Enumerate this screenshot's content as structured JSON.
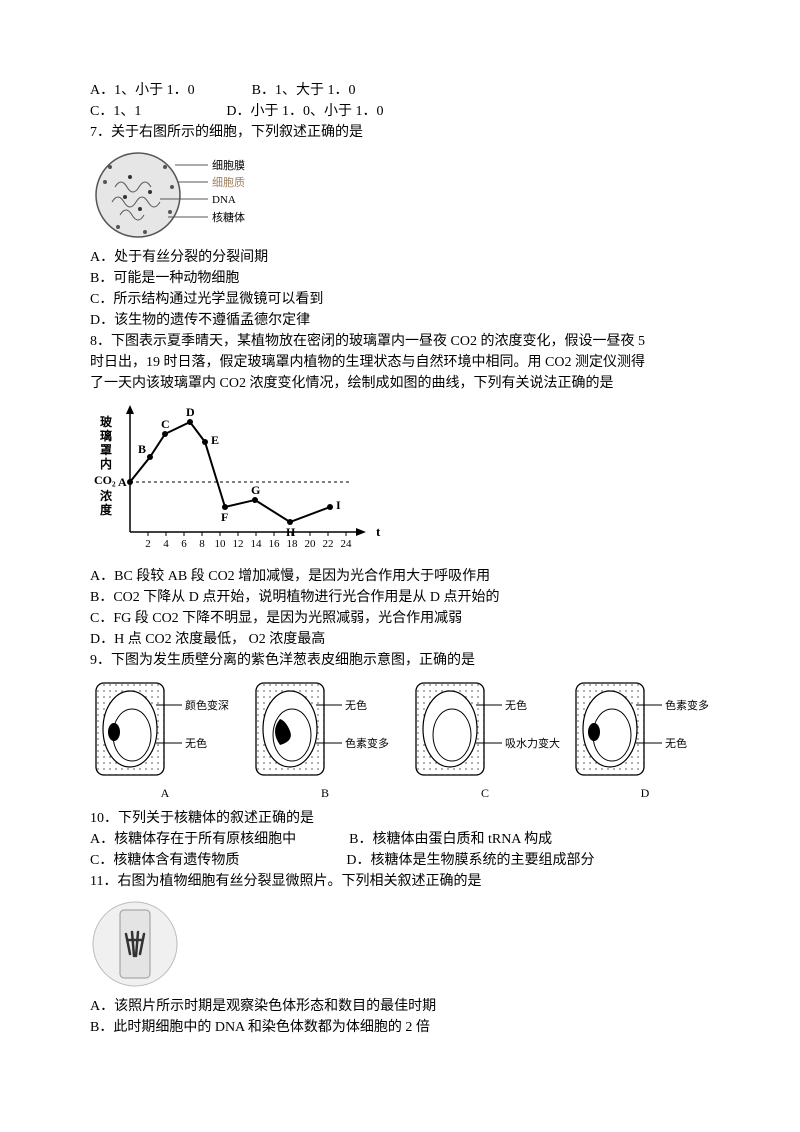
{
  "q6opts": {
    "a": "A．1、小于 1．0",
    "b": "B．1、大于 1．0",
    "c": "C．1、1",
    "d": "D．小于 1．0、小于 1．0"
  },
  "q7": {
    "stem": "7．关于右图所示的细胞，下列叙述正确的是",
    "labels": {
      "l1": "细胞膜",
      "l2": "细胞质",
      "l3": "DNA",
      "l4": "核糖体"
    },
    "a": "A．处于有丝分裂的分裂间期",
    "b": "B．可能是一种动物细胞",
    "c": "C．所示结构通过光学显微镜可以看到",
    "d": "D．该生物的遗传不遵循孟德尔定律",
    "fig_colors": {
      "stroke": "#555",
      "fill": "#dcdcdc"
    }
  },
  "q8": {
    "stem1": "8．下图表示夏季晴天，某植物放在密闭的玻璃罩内一昼夜 CO2 的浓度变化，假设一昼夜 5",
    "stem2": "时日出，19 时日落，假定玻璃罩内植物的生理状态与自然环境中相同。用 CO2 测定仪测得",
    "stem3": "了一天内该玻璃罩内 CO2 浓度变化情况，绘制成如图的曲线，下列有关说法正确的是",
    "chart": {
      "ylabel1": "玻",
      "ylabel2": "璃",
      "ylabel3": "罩",
      "ylabel4": "内",
      "ylabel5": "CO₂",
      "ylabel6": "浓",
      "ylabel7": "度",
      "xlabel": "t",
      "xticks": [
        "2",
        "4",
        "6",
        "8",
        "10",
        "12",
        "14",
        "16",
        "18",
        "20",
        "22",
        "24"
      ],
      "points": {
        "A": [
          0,
          70
        ],
        "B": [
          20,
          45
        ],
        "C": [
          35,
          22
        ],
        "D": [
          60,
          10
        ],
        "E": [
          75,
          30
        ],
        "F": [
          95,
          95
        ],
        "G": [
          125,
          88
        ],
        "H": [
          160,
          110
        ],
        "I": [
          200,
          95
        ]
      },
      "pt_labels": {
        "A": "A",
        "B": "B",
        "C": "C",
        "D": "D",
        "E": "E",
        "F": "F",
        "G": "G",
        "H": "H",
        "I": "I"
      },
      "dash_y": 70,
      "colors": {
        "axis": "#000",
        "line": "#000",
        "bg": "#fff"
      }
    },
    "a": "A．BC 段较 AB 段 CO2 增加减慢，是因为光合作用大于呼吸作用",
    "b": "B．CO2 下降从 D 点开始，说明植物进行光合作用是从 D 点开始的",
    "c": "C．FG 段 CO2 下降不明显，是因为光照减弱，光合作用减弱",
    "d": "D．H 点 CO2 浓度最低， O2 浓度最高"
  },
  "q9": {
    "stem": "9．下图为发生质壁分离的紫色洋葱表皮细胞示意图，正确的是",
    "cells": {
      "a": {
        "top": "颜色变深",
        "bot": "无色",
        "cap": "A"
      },
      "b": {
        "top": "无色",
        "bot": "色素变多",
        "cap": "B"
      },
      "c": {
        "top": "无色",
        "bot": "吸水力变大",
        "cap": "C"
      },
      "d": {
        "top": "色素变多",
        "bot": "无色",
        "cap": "D"
      }
    },
    "colors": {
      "wall": "#000",
      "dot": "#888",
      "inner": "#fff",
      "nuc": "#000"
    }
  },
  "q10": {
    "stem": "10．下列关于核糖体的叙述正确的是",
    "a": "A．核糖体存在于所有原核细胞中",
    "b": "B．核糖体由蛋白质和 tRNA 构成",
    "c": "C．核糖体含有遗传物质",
    "d": "D．核糖体是生物膜系统的主要组成部分"
  },
  "q11": {
    "stem": "11．右图为植物细胞有丝分裂显微照片。下列相关叙述正确的是",
    "a": "A．该照片所示时期是观察染色体形态和数目的最佳时期",
    "b": "B．此时期细胞中的 DNA 和染色体数都为体细胞的 2 倍",
    "fig_colors": {
      "bg": "#e8e8e8",
      "chrom": "#444",
      "border": "#aaa"
    }
  }
}
